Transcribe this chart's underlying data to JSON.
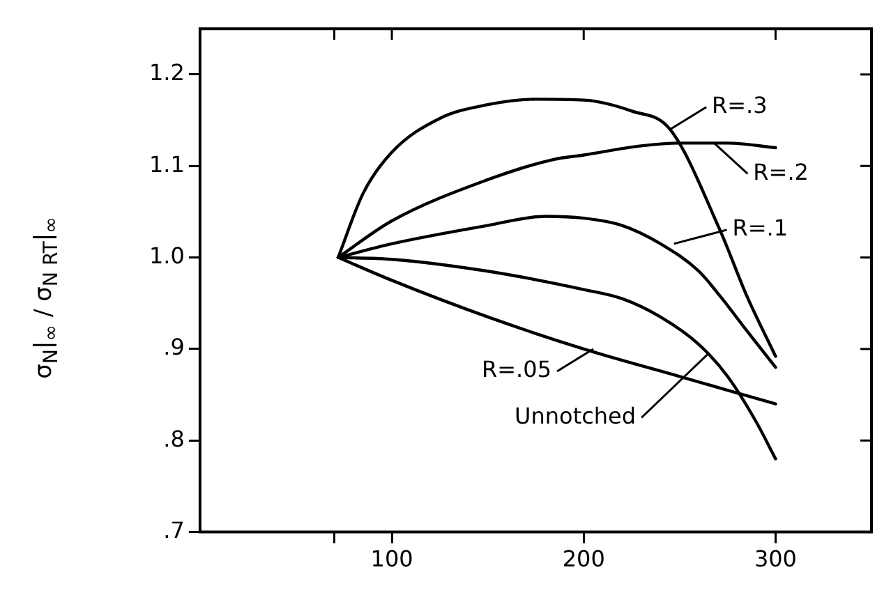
{
  "chart_data": {
    "type": "line",
    "ylabel": "σ$_{N}$|$_{∞}$ / σ$_{N RT}$|$_{∞}$",
    "xlim": [
      0,
      350
    ],
    "xticks": [
      {
        "value": 70,
        "label": null
      },
      100,
      200,
      300
    ],
    "ylim": [
      0.7,
      1.25
    ],
    "yticks": [
      {
        "value": 0.7,
        "label": ".7"
      },
      {
        "value": 0.8,
        "label": ".8"
      },
      {
        "value": 0.9,
        "label": ".9"
      },
      {
        "value": 1.0,
        "label": "1.0"
      },
      {
        "value": 1.1,
        "label": "1.1"
      },
      {
        "value": 1.2,
        "label": "1.2"
      }
    ],
    "grid": false,
    "legend": false,
    "marker": "none",
    "line_style": "solid",
    "series": [
      {
        "color": "#000000",
        "x": [
          72,
          85,
          100,
          125,
          150,
          175,
          200,
          225,
          245,
          271,
          285,
          300
        ],
        "values": [
          1.0,
          1.07,
          1.115,
          1.152,
          1.167,
          1.173,
          1.172,
          1.16,
          1.14,
          1.03,
          0.958,
          0.892
        ]
      },
      {
        "color": "#000000",
        "x": [
          72,
          100,
          150,
          184,
          200,
          230,
          250,
          275,
          300
        ],
        "values": [
          1.0,
          1.04,
          1.085,
          1.107,
          1.112,
          1.122,
          1.125,
          1.125,
          1.12
        ]
      },
      {
        "color": "#000000",
        "x": [
          72,
          100,
          150,
          180,
          200,
          220,
          240,
          260,
          271,
          285,
          300
        ],
        "values": [
          1.0,
          1.015,
          1.035,
          1.045,
          1.043,
          1.035,
          1.015,
          0.985,
          0.958,
          0.92,
          0.88
        ]
      },
      {
        "color": "#000000",
        "x": [
          72,
          100,
          150,
          200,
          250,
          300
        ],
        "values": [
          1.0,
          0.975,
          0.935,
          0.9,
          0.87,
          0.84
        ]
      },
      {
        "color": "#000000",
        "x": [
          72,
          100,
          150,
          200,
          220,
          240,
          260,
          275,
          290,
          300
        ],
        "values": [
          1.0,
          0.998,
          0.985,
          0.965,
          0.955,
          0.935,
          0.905,
          0.87,
          0.82,
          0.78
        ]
      }
    ],
    "annotations": [
      {
        "text": "R=.3",
        "x": 245,
        "y": 1.14
      },
      {
        "text": "R=.2",
        "x": 268,
        "y": 1.125
      },
      {
        "text": "R=.1",
        "x": 247,
        "y": 1.015
      },
      {
        "text": "R=.05",
        "x": 205,
        "y": 0.9
      },
      {
        "text": "Unnotched",
        "x": 265,
        "y": 0.895
      }
    ]
  }
}
